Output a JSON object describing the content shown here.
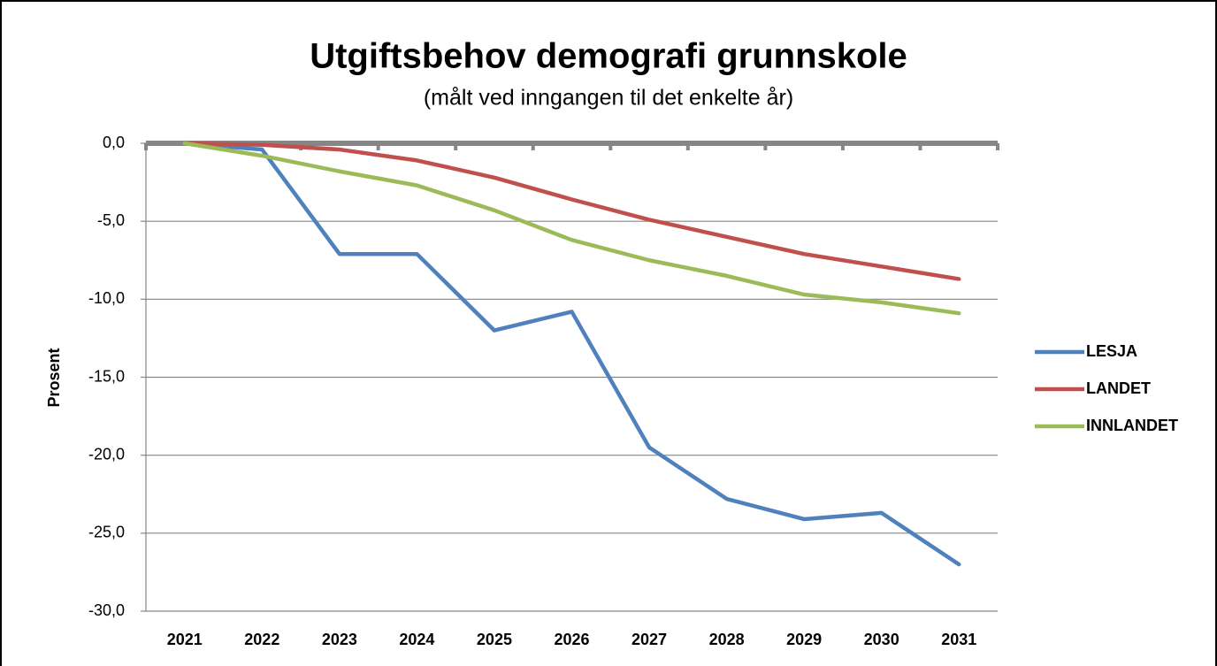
{
  "chart_data": {
    "type": "line",
    "title": "Utgiftsbehov demografi grunnskole",
    "subtitle": "(målt ved inngangen til det enkelte år)",
    "y_label": "Prosent",
    "categories": [
      "2021",
      "2022",
      "2023",
      "2024",
      "2025",
      "2026",
      "2027",
      "2028",
      "2029",
      "2030",
      "2031"
    ],
    "series": [
      {
        "name": "LESJA",
        "color": "#4f81bd",
        "values": [
          0,
          -0.4,
          -7.1,
          -7.1,
          -12.0,
          -10.8,
          -19.5,
          -22.8,
          -24.1,
          -23.7,
          -27.0
        ]
      },
      {
        "name": "LANDET",
        "color": "#c0504d",
        "values": [
          0,
          -0.1,
          -0.4,
          -1.1,
          -2.2,
          -3.6,
          -4.9,
          -6.0,
          -7.1,
          -7.9,
          -8.7
        ]
      },
      {
        "name": "INNLANDET",
        "color": "#9bbb59",
        "values": [
          0,
          -0.8,
          -1.8,
          -2.7,
          -4.3,
          -6.2,
          -7.5,
          -8.5,
          -9.7,
          -10.2,
          -10.9
        ]
      }
    ],
    "ylim": [
      -30,
      0
    ],
    "yticks": [
      {
        "value": 0,
        "label": "0,0"
      },
      {
        "value": -5,
        "label": "-5,0"
      },
      {
        "value": -10,
        "label": "-10,0"
      },
      {
        "value": -15,
        "label": "-15,0"
      },
      {
        "value": -20,
        "label": "-20,0"
      },
      {
        "value": -25,
        "label": "-25,0"
      },
      {
        "value": -30,
        "label": "-30,0"
      }
    ],
    "grid": true,
    "legend": "right"
  }
}
